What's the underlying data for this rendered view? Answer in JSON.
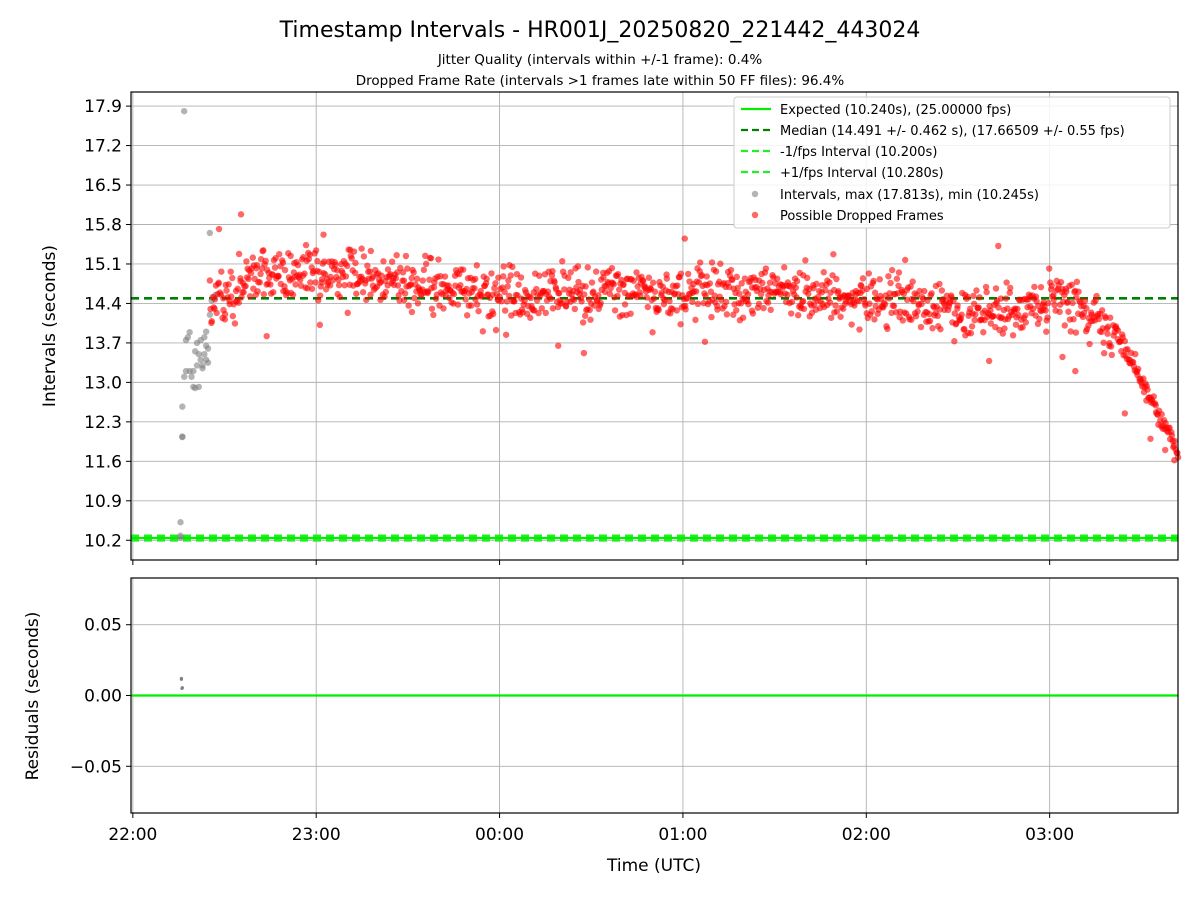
{
  "chart_data": {
    "type": "scatter",
    "title": "Timestamp Intervals - HR001J_20250820_221442_443024",
    "subtitle_lines": [
      "Jitter Quality (intervals within +/-1 frame): 0.4%",
      "Dropped Frame Rate (intervals >1 frames late within 50 FF files): 96.4%"
    ],
    "xlabel": "Time (UTC)",
    "x_ticks": [
      "22:00",
      "23:00",
      "00:00",
      "01:00",
      "02:00",
      "03:00"
    ],
    "x_range_hours": [
      -0.01,
      5.7
    ],
    "panels": [
      {
        "name": "intervals",
        "ylabel": "Intervals (seconds)",
        "ylim": [
          9.85,
          18.15
        ],
        "y_ticks": [
          10.2,
          10.9,
          11.6,
          12.3,
          13.0,
          13.7,
          14.4,
          15.1,
          15.8,
          16.5,
          17.2,
          17.9
        ],
        "grid": true,
        "legend_position": "top-right",
        "reference_lines": [
          {
            "label": "Expected (10.240s), (25.00000 fps)",
            "value": 10.24,
            "color": "#00ee00",
            "style": "solid"
          },
          {
            "label": "Median (14.491 +/- 0.462 s), (17.66509 +/- 0.55 fps)",
            "value": 14.491,
            "color": "#007f00",
            "style": "dashed"
          },
          {
            "label": "-1/fps Interval (10.200s)",
            "value": 10.2,
            "color": "#22ee22",
            "style": "dashed"
          },
          {
            "label": "+1/fps Interval (10.280s)",
            "value": 10.28,
            "color": "#22ee22",
            "style": "dashed"
          }
        ],
        "series": [
          {
            "label": "Intervals, max (17.813s), min (10.245s)",
            "color": "#808080",
            "points": [
              [
                0.28,
                17.81
              ],
              [
                0.26,
                10.25
              ],
              [
                0.26,
                10.28
              ],
              [
                0.26,
                10.52
              ],
              [
                0.27,
                12.03
              ],
              [
                0.27,
                12.04
              ],
              [
                0.27,
                12.57
              ],
              [
                0.28,
                13.1
              ],
              [
                0.29,
                13.2
              ],
              [
                0.29,
                13.75
              ],
              [
                0.3,
                13.8
              ],
              [
                0.31,
                13.2
              ],
              [
                0.31,
                13.89
              ],
              [
                0.32,
                13.1
              ],
              [
                0.33,
                12.92
              ],
              [
                0.33,
                13.2
              ],
              [
                0.34,
                13.55
              ],
              [
                0.34,
                12.9
              ],
              [
                0.35,
                13.3
              ],
              [
                0.35,
                13.7
              ],
              [
                0.36,
                13.5
              ],
              [
                0.36,
                12.92
              ],
              [
                0.37,
                13.4
              ],
              [
                0.37,
                13.75
              ],
              [
                0.38,
                13.3
              ],
              [
                0.38,
                13.25
              ],
              [
                0.39,
                13.5
              ],
              [
                0.39,
                13.8
              ],
              [
                0.4,
                13.4
              ],
              [
                0.4,
                13.65
              ],
              [
                0.4,
                13.9
              ],
              [
                0.41,
                13.35
              ],
              [
                0.41,
                13.6
              ],
              [
                0.42,
                14.2
              ],
              [
                0.42,
                15.65
              ],
              [
                0.43,
                14.45
              ],
              [
                0.44,
                14.5
              ],
              [
                0.45,
                14.55
              ]
            ]
          },
          {
            "label": "Possible Dropped Frames",
            "color": "#ff0000",
            "generated": true,
            "count": 1250,
            "x_range": [
              0.42,
              5.7
            ],
            "points": [
              [
                0.59,
                15.98
              ],
              [
                0.47,
                15.72
              ],
              [
                1.04,
                15.62
              ],
              [
                3.01,
                15.55
              ],
              [
                4.72,
                15.42
              ],
              [
                0.73,
                13.82
              ],
              [
                1.02,
                14.02
              ],
              [
                2.32,
                13.65
              ],
              [
                2.46,
                13.52
              ],
              [
                3.12,
                13.72
              ],
              [
                4.67,
                13.38
              ],
              [
                5.07,
                13.45
              ],
              [
                5.14,
                13.2
              ],
              [
                5.41,
                12.45
              ],
              [
                5.55,
                12.0
              ],
              [
                5.63,
                11.8
              ],
              [
                5.68,
                11.62
              ]
            ]
          }
        ]
      },
      {
        "name": "residuals",
        "ylabel": "Residuals (seconds)",
        "ylim": [
          -0.083,
          0.083
        ],
        "y_ticks": [
          0.05,
          0.0,
          -0.05
        ],
        "y_tick_labels": [
          "0.05",
          "0.00",
          "−0.05"
        ],
        "grid": true,
        "reference_line": {
          "value": 0.0,
          "color": "#00ee00"
        },
        "series": [
          {
            "color": "#808080",
            "points": [
              [
                0.265,
                0.012
              ],
              [
                0.265,
                0.0115
              ],
              [
                0.268,
                0.005
              ],
              [
                0.27,
                0.0055
              ]
            ]
          }
        ]
      }
    ]
  }
}
